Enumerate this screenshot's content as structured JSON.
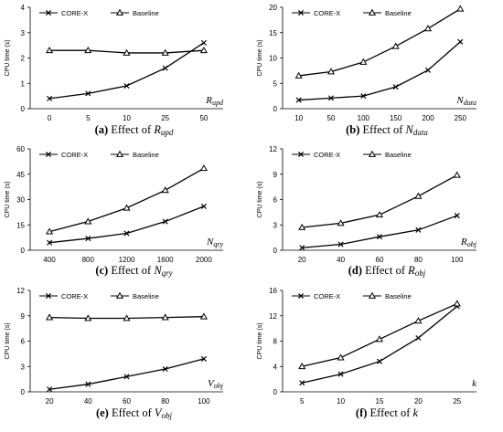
{
  "chart_data": [
    {
      "type": "line",
      "panel": "a",
      "caption_prefix": "(a)",
      "caption_text": "Effect of",
      "caption_var": "R",
      "caption_sub": "upd",
      "axis_label": "R",
      "axis_sub": "upd",
      "ylabel": "CPU time (s)",
      "categories": [
        "0",
        "5",
        "10",
        "25",
        "50"
      ],
      "ylim": [
        0,
        4
      ],
      "yticks": [
        "0",
        "1",
        "2",
        "3",
        "4"
      ],
      "series": [
        {
          "name": "CORE-X",
          "values": [
            0.4,
            0.6,
            0.9,
            1.6,
            2.6
          ]
        },
        {
          "name": "Baseline",
          "values": [
            2.3,
            2.3,
            2.2,
            2.2,
            2.3
          ]
        }
      ]
    },
    {
      "type": "line",
      "panel": "b",
      "caption_prefix": "(b)",
      "caption_text": "Effect of",
      "caption_var": "N",
      "caption_sub": "data",
      "axis_label": "N",
      "axis_sub": "data",
      "ylabel": "CPU time (s)",
      "categories": [
        "10",
        "50",
        "100",
        "150",
        "200",
        "250"
      ],
      "ylim": [
        0,
        20
      ],
      "yticks": [
        "0",
        "5",
        "10",
        "15",
        "20"
      ],
      "series": [
        {
          "name": "CORE-X",
          "values": [
            1.7,
            2.1,
            2.5,
            4.3,
            7.6,
            13.2
          ]
        },
        {
          "name": "Baseline",
          "values": [
            6.5,
            7.3,
            9.2,
            12.3,
            15.8,
            19.7
          ]
        }
      ]
    },
    {
      "type": "line",
      "panel": "c",
      "caption_prefix": "(c)",
      "caption_text": "Effect of",
      "caption_var": "N",
      "caption_sub": "qry",
      "axis_label": "N",
      "axis_sub": "qry",
      "ylabel": "CPU time (s)",
      "categories": [
        "400",
        "800",
        "1200",
        "1600",
        "2000"
      ],
      "ylim": [
        0,
        60
      ],
      "yticks": [
        "0",
        "15",
        "30",
        "45",
        "60"
      ],
      "series": [
        {
          "name": "CORE-X",
          "values": [
            4.5,
            7,
            10,
            17,
            26
          ]
        },
        {
          "name": "Baseline",
          "values": [
            11,
            17,
            25,
            35.5,
            48.5
          ]
        }
      ]
    },
    {
      "type": "line",
      "panel": "d",
      "caption_prefix": "(d)",
      "caption_text": "Effect of",
      "caption_var": "R",
      "caption_sub": "obj",
      "axis_label": "R",
      "axis_sub": "obj",
      "ylabel": "CPU time (s)",
      "categories": [
        "20",
        "40",
        "60",
        "80",
        "100"
      ],
      "ylim": [
        0,
        12
      ],
      "yticks": [
        "0",
        "3",
        "6",
        "9",
        "12"
      ],
      "series": [
        {
          "name": "CORE-X",
          "values": [
            0.3,
            0.7,
            1.6,
            2.4,
            4.1
          ]
        },
        {
          "name": "Baseline",
          "values": [
            2.7,
            3.2,
            4.2,
            6.4,
            8.9
          ]
        }
      ]
    },
    {
      "type": "line",
      "panel": "e",
      "caption_prefix": "(e)",
      "caption_text": "Effect of",
      "caption_var": "V",
      "caption_sub": "obj",
      "axis_label": "V",
      "axis_sub": "obj",
      "ylabel": "CPU time (s)",
      "categories": [
        "20",
        "40",
        "60",
        "80",
        "100"
      ],
      "ylim": [
        0,
        12
      ],
      "yticks": [
        "0",
        "3",
        "6",
        "9",
        "12"
      ],
      "series": [
        {
          "name": "CORE-X",
          "values": [
            0.3,
            0.9,
            1.8,
            2.7,
            3.9
          ]
        },
        {
          "name": "Baseline",
          "values": [
            8.8,
            8.7,
            8.7,
            8.8,
            8.9
          ]
        }
      ]
    },
    {
      "type": "line",
      "panel": "f",
      "caption_prefix": "(f)",
      "caption_text": "Effect of",
      "caption_var": "k",
      "caption_sub": "",
      "axis_label": "k",
      "axis_sub": "",
      "ylabel": "CPU time (s)",
      "categories": [
        "5",
        "10",
        "15",
        "20",
        "25"
      ],
      "ylim": [
        0,
        16
      ],
      "yticks": [
        "0",
        "4",
        "8",
        "12",
        "16"
      ],
      "series": [
        {
          "name": "CORE-X",
          "values": [
            1.4,
            2.8,
            4.8,
            8.5,
            13.5
          ]
        },
        {
          "name": "Baseline",
          "values": [
            4,
            5.4,
            8.3,
            11.2,
            13.9
          ]
        }
      ]
    }
  ]
}
